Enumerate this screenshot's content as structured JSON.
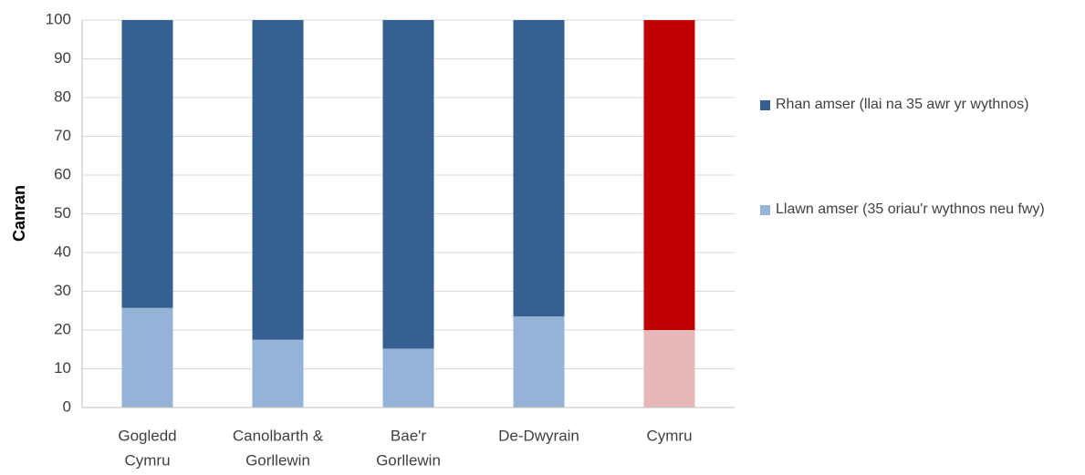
{
  "chart_data": {
    "type": "stacked_bar",
    "y_label": "Canran",
    "categories": [
      [
        "Gogledd",
        "Cymru"
      ],
      [
        "Canolbarth &",
        "Gorllewin"
      ],
      [
        "Bae'r",
        "Gorllewin"
      ],
      [
        "De-Dwyrain"
      ],
      [
        "Cymru"
      ]
    ],
    "series": [
      {
        "name": "Llawn amser (35 oriau'r wythnos neu fwy)",
        "color": "#95b3d7",
        "colors": [
          "#95b3d7",
          "#95b3d7",
          "#95b3d7",
          "#95b3d7",
          "#e6b8b7"
        ],
        "values": [
          25.7,
          17.5,
          15.2,
          23.5,
          20
        ]
      },
      {
        "name": "Rhan amser (llai na 35 awr yr wythnos)",
        "color": "#366092",
        "colors": [
          "#366092",
          "#366092",
          "#366092",
          "#366092",
          "#c00000"
        ],
        "values": [
          74.3,
          82.5,
          84.8,
          76.5,
          80
        ]
      }
    ],
    "ylim": [
      0,
      100
    ],
    "yticks": [
      0,
      10,
      20,
      30,
      40,
      50,
      60,
      70,
      80,
      90,
      100
    ],
    "grid": true,
    "legend": "right"
  }
}
